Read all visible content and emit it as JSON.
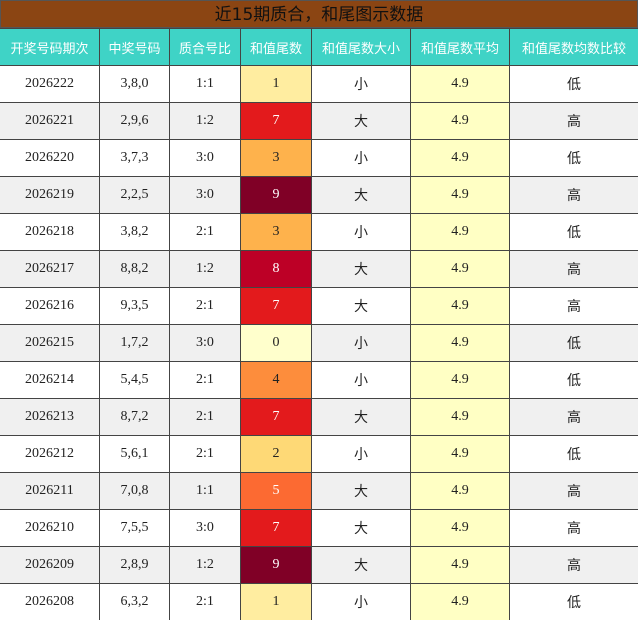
{
  "title": "近15期质合，和尾图示数据",
  "table": {
    "headers": [
      "开奖号码期次",
      "中奖号码",
      "质合号比",
      "和值尾数",
      "和值尾数大小",
      "和值尾数平均",
      "和值尾数均数比较"
    ],
    "rows": [
      [
        "2026222",
        "3,8,0",
        "1:1",
        "1",
        "小",
        "4.9",
        "低"
      ],
      [
        "2026221",
        "2,9,6",
        "1:2",
        "7",
        "大",
        "4.9",
        "高"
      ],
      [
        "2026220",
        "3,7,3",
        "3:0",
        "3",
        "小",
        "4.9",
        "低"
      ],
      [
        "2026219",
        "2,2,5",
        "3:0",
        "9",
        "大",
        "4.9",
        "高"
      ],
      [
        "2026218",
        "3,8,2",
        "2:1",
        "3",
        "小",
        "4.9",
        "低"
      ],
      [
        "2026217",
        "8,8,2",
        "1:2",
        "8",
        "大",
        "4.9",
        "高"
      ],
      [
        "2026216",
        "9,3,5",
        "2:1",
        "7",
        "大",
        "4.9",
        "高"
      ],
      [
        "2026215",
        "1,7,2",
        "3:0",
        "0",
        "小",
        "4.9",
        "低"
      ],
      [
        "2026214",
        "5,4,5",
        "2:1",
        "4",
        "小",
        "4.9",
        "低"
      ],
      [
        "2026213",
        "8,7,2",
        "2:1",
        "7",
        "大",
        "4.9",
        "高"
      ],
      [
        "2026212",
        "5,6,1",
        "2:1",
        "2",
        "小",
        "4.9",
        "低"
      ],
      [
        "2026211",
        "7,0,8",
        "1:1",
        "5",
        "大",
        "4.9",
        "高"
      ],
      [
        "2026210",
        "7,5,5",
        "3:0",
        "7",
        "大",
        "4.9",
        "高"
      ],
      [
        "2026209",
        "2,8,9",
        "1:2",
        "9",
        "大",
        "4.9",
        "高"
      ],
      [
        "2026208",
        "6,3,2",
        "2:1",
        "1",
        "小",
        "4.9",
        "低"
      ]
    ]
  }
}
